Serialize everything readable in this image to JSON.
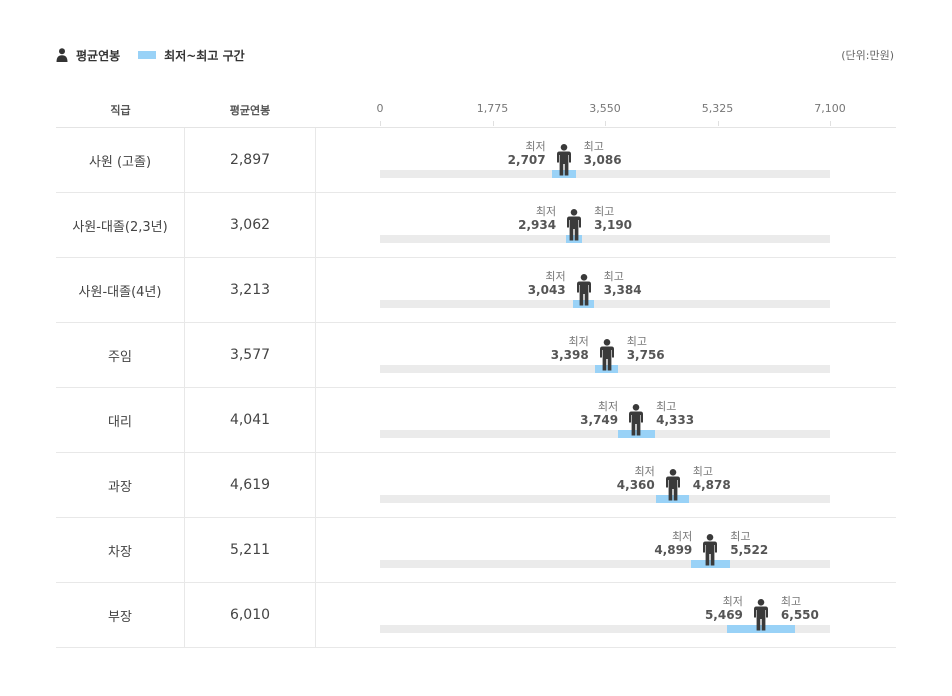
{
  "legend": {
    "avg_label": "평균연봉",
    "range_label": "최저~최고 구간"
  },
  "unit_label": "(단위:만원)",
  "colors": {
    "range": "#99d2f7",
    "track": "#ebebeb",
    "person": "#3a3a3a"
  },
  "header": {
    "role_col": "직급",
    "avg_col": "평균연봉"
  },
  "captions": {
    "min": "최저",
    "max": "최고"
  },
  "chart_data": {
    "type": "range",
    "title": "",
    "xlim": [
      0,
      7100
    ],
    "ticks": [
      "0",
      "1,775",
      "3,550",
      "5,325",
      "7,100"
    ],
    "tick_values": [
      0,
      1775,
      3550,
      5325,
      7100
    ],
    "categories": [
      "사원 (고졸)",
      "사원-대졸(2,3년)",
      "사원-대졸(4년)",
      "주임",
      "대리",
      "과장",
      "차장",
      "부장"
    ],
    "series": [
      {
        "name": "평균연봉",
        "values": [
          2897,
          3062,
          3213,
          3577,
          4041,
          4619,
          5211,
          6010
        ]
      },
      {
        "name": "최저",
        "values": [
          2707,
          2934,
          3043,
          3398,
          3749,
          4360,
          4899,
          5469
        ]
      },
      {
        "name": "최고",
        "values": [
          3086,
          3190,
          3384,
          3756,
          4333,
          4878,
          5522,
          6550
        ]
      }
    ],
    "rows": [
      {
        "role": "사원 (고졸)",
        "avg": "2,897",
        "min": "2,707",
        "max": "3,086"
      },
      {
        "role": "사원-대졸(2,3년)",
        "avg": "3,062",
        "min": "2,934",
        "max": "3,190"
      },
      {
        "role": "사원-대졸(4년)",
        "avg": "3,213",
        "min": "3,043",
        "max": "3,384"
      },
      {
        "role": "주임",
        "avg": "3,577",
        "min": "3,398",
        "max": "3,756"
      },
      {
        "role": "대리",
        "avg": "4,041",
        "min": "3,749",
        "max": "4,333"
      },
      {
        "role": "과장",
        "avg": "4,619",
        "min": "4,360",
        "max": "4,878"
      },
      {
        "role": "차장",
        "avg": "5,211",
        "min": "4,899",
        "max": "5,522"
      },
      {
        "role": "부장",
        "avg": "6,010",
        "min": "5,469",
        "max": "6,550"
      }
    ]
  }
}
